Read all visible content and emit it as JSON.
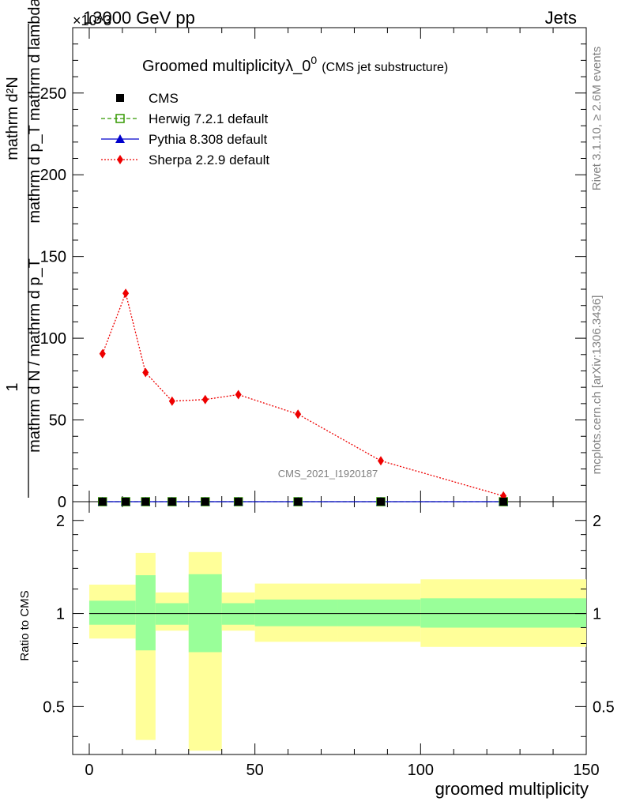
{
  "header": {
    "left_label": "13000 GeV pp",
    "right_label": "Jets",
    "exponent_label": "×10^3"
  },
  "side_labels": {
    "rivet": "Rivet 3.1.10, ≥ 2.6M events",
    "mcplots": "mcplots.cern.ch [arXiv:1306.3436]"
  },
  "watermark": "CMS_2021_I1920187",
  "chart_data": [
    {
      "type": "scatter",
      "title_main": "Groomed multiplicityλ_0",
      "title_sup": "0",
      "title_sub": "(CMS jet substructure)",
      "ylabel_num": "mathrm d²N",
      "ylabel_den": "mathrm d p_T mathrm d lambda",
      "ylabel_prefix": "1",
      "ylabel_prefix_den": "mathrm d N / mathrm d p_T",
      "xlim": [
        -5,
        150
      ],
      "ylim": [
        0,
        290
      ],
      "yticks": [
        0,
        50,
        100,
        150,
        200,
        250
      ],
      "legend_position": "top-left",
      "series": [
        {
          "name": "CMS",
          "color": "#000000",
          "marker": "square",
          "x": [
            4,
            11,
            17,
            25,
            35,
            45,
            63,
            88,
            125
          ],
          "y": [
            0,
            0,
            0,
            0,
            0,
            0,
            0,
            0,
            0
          ]
        },
        {
          "name": "Herwig 7.2.1 default",
          "color": "#339900",
          "marker": "open-square",
          "line": "dashed",
          "x": [
            4,
            11,
            17,
            25,
            35,
            45,
            63,
            88,
            125
          ],
          "y": [
            0,
            0,
            0,
            0,
            0,
            0,
            0,
            0,
            0
          ]
        },
        {
          "name": "Pythia 8.308 default",
          "color": "#0000cc",
          "marker": "triangle",
          "line": "solid",
          "x": [
            4,
            11,
            17,
            25,
            35,
            45,
            63,
            88,
            125
          ],
          "y": [
            0,
            0,
            0,
            0,
            0,
            0,
            0,
            0,
            0
          ]
        },
        {
          "name": "Sherpa 2.2.9 default",
          "color": "#ee0000",
          "marker": "diamond",
          "line": "dotted",
          "x": [
            4,
            11,
            17,
            25,
            35,
            45,
            63,
            88,
            125
          ],
          "y": [
            90.5,
            127.5,
            79,
            61.5,
            62.5,
            65.5,
            53.5,
            25,
            3.5
          ]
        }
      ]
    },
    {
      "type": "area",
      "ylabel": "Ratio to CMS",
      "xlabel": "groomed multiplicity",
      "xlim": [
        -5,
        150
      ],
      "ylim": [
        0.35,
        2.3
      ],
      "log_scale_y": true,
      "yticks": [
        0.5,
        1,
        2
      ],
      "xticks": [
        0,
        50,
        100,
        150
      ],
      "reference_line": 1,
      "bands": [
        {
          "x0": 0,
          "x1": 14,
          "inner": [
            0.92,
            1.1
          ],
          "outer": [
            0.83,
            1.24
          ]
        },
        {
          "x0": 14,
          "x1": 20,
          "inner": [
            0.76,
            1.33
          ],
          "outer": [
            0.39,
            1.57
          ]
        },
        {
          "x0": 20,
          "x1": 30,
          "inner": [
            0.92,
            1.08
          ],
          "outer": [
            0.88,
            1.17
          ]
        },
        {
          "x0": 30,
          "x1": 40,
          "inner": [
            0.75,
            1.34
          ],
          "outer": [
            0.36,
            1.58
          ]
        },
        {
          "x0": 40,
          "x1": 50,
          "inner": [
            0.92,
            1.08
          ],
          "outer": [
            0.88,
            1.17
          ]
        },
        {
          "x0": 50,
          "x1": 75,
          "inner": [
            0.91,
            1.11
          ],
          "outer": [
            0.81,
            1.25
          ]
        },
        {
          "x0": 75,
          "x1": 100,
          "inner": [
            0.91,
            1.11
          ],
          "outer": [
            0.81,
            1.25
          ]
        },
        {
          "x0": 100,
          "x1": 150,
          "inner": [
            0.9,
            1.12
          ],
          "outer": [
            0.78,
            1.29
          ]
        }
      ],
      "band_colors": {
        "inner": "#99ff99",
        "outer": "#ffff99"
      }
    }
  ]
}
